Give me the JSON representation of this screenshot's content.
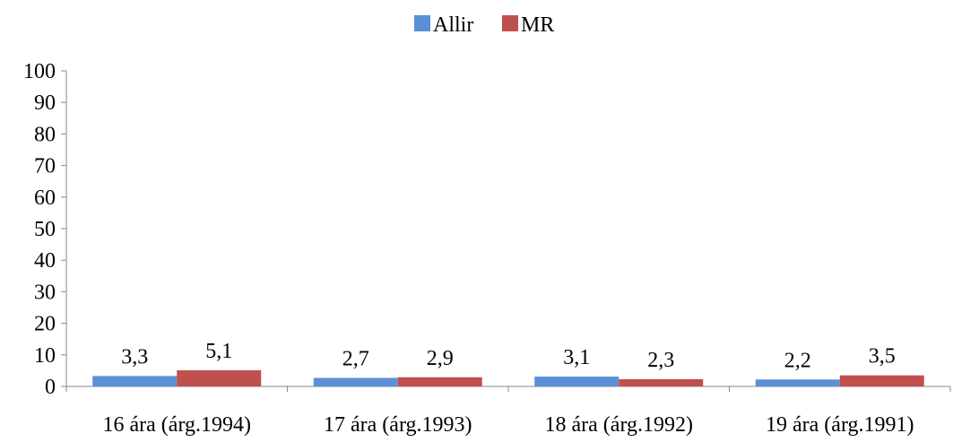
{
  "chart_data": {
    "type": "bar",
    "title": "",
    "xlabel": "",
    "ylabel": "",
    "categories": [
      "16 ára (árg.1994)",
      "17 ára (árg.1993)",
      "18 ára (árg.1992)",
      "19 ára (árg.1991)"
    ],
    "series": [
      {
        "name": "Allir",
        "values": [
          3.3,
          2.7,
          3.1,
          2.2
        ],
        "labels": [
          "3,3",
          "2,7",
          "3,1",
          "2,2"
        ],
        "color": "#5b8fd6"
      },
      {
        "name": "MR",
        "values": [
          5.1,
          2.9,
          2.3,
          3.5
        ],
        "labels": [
          "5,1",
          "2,9",
          "2,3",
          "3,5"
        ],
        "color": "#c0504d"
      }
    ],
    "ylim": [
      0,
      100
    ],
    "yticks": [
      "0",
      "10",
      "20",
      "30",
      "40",
      "50",
      "60",
      "70",
      "80",
      "90",
      "100"
    ],
    "legend_position": "top-center",
    "grid": false
  }
}
